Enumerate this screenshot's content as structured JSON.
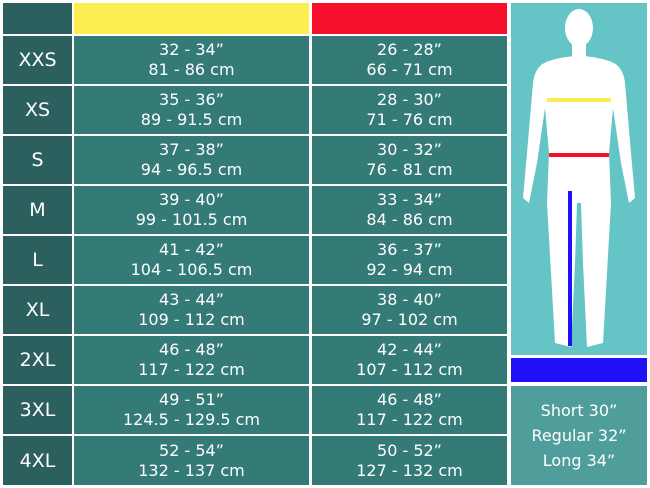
{
  "colors": {
    "chest": "#fcee50",
    "waist": "#f7102e",
    "inseam": "#2010f8"
  },
  "rows": [
    {
      "size": "XXS",
      "chest_in": "32 - 34”",
      "chest_cm": "81 - 86 cm",
      "waist_in": "26 - 28”",
      "waist_cm": "66 - 71 cm"
    },
    {
      "size": "XS",
      "chest_in": "35 - 36”",
      "chest_cm": "89 - 91.5 cm",
      "waist_in": "28 - 30”",
      "waist_cm": "71 - 76 cm"
    },
    {
      "size": "S",
      "chest_in": "37 - 38”",
      "chest_cm": "94 - 96.5 cm",
      "waist_in": "30 - 32”",
      "waist_cm": "76 - 81 cm"
    },
    {
      "size": "M",
      "chest_in": "39 - 40”",
      "chest_cm": "99 - 101.5 cm",
      "waist_in": "33 - 34”",
      "waist_cm": "84 - 86 cm"
    },
    {
      "size": "L",
      "chest_in": "41 - 42”",
      "chest_cm": "104 - 106.5 cm",
      "waist_in": "36 - 37”",
      "waist_cm": "92 - 94 cm"
    },
    {
      "size": "XL",
      "chest_in": "43 - 44”",
      "chest_cm": "109 - 112 cm",
      "waist_in": "38 - 40”",
      "waist_cm": "97 - 102 cm"
    },
    {
      "size": "2XL",
      "chest_in": "46 - 48”",
      "chest_cm": "117 - 122 cm",
      "waist_in": "42 - 44”",
      "waist_cm": "107 - 112 cm"
    },
    {
      "size": "3XL",
      "chest_in": "49 - 51”",
      "chest_cm": "124.5 - 129.5 cm",
      "waist_in": "46 - 48”",
      "waist_cm": "117 - 122 cm"
    },
    {
      "size": "4XL",
      "chest_in": "52 - 54”",
      "chest_cm": "132 - 137 cm",
      "waist_in": "50 - 52”",
      "waist_cm": "127 - 132 cm"
    }
  ],
  "inseam": [
    "Short 30”",
    "Regular 32”",
    "Long 34”"
  ]
}
